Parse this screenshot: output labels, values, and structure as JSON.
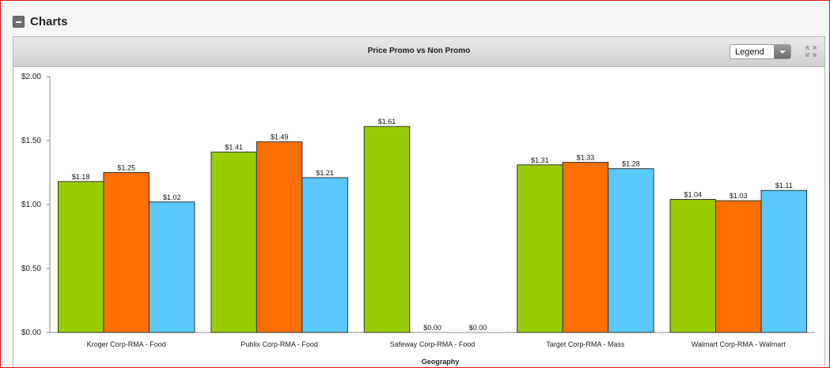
{
  "section": {
    "title": "Charts",
    "collapse_icon": "minus-square-icon"
  },
  "panel": {
    "title": "Price Promo vs Non Promo",
    "legend_select_value": "Legend",
    "dropdown_icon": "chevron-down-icon",
    "expand_icon": "expand-arrows-icon"
  },
  "colors": {
    "series1": "#99cc00",
    "series2": "#ff6e00",
    "series3": "#5ac8fa",
    "bar_border": "#333333",
    "axis": "#888888"
  },
  "chart_data": {
    "type": "bar",
    "title": "Price Promo vs Non Promo",
    "xlabel": "Geography",
    "ylabel": "",
    "ylim": [
      0,
      2
    ],
    "yticks": [
      "$0.00",
      "$0.50",
      "$1.00",
      "$1.50",
      "$2.00"
    ],
    "ytick_values": [
      0,
      0.5,
      1,
      1.5,
      2
    ],
    "categories": [
      "Kroger Corp-RMA - Food",
      "Publix Corp-RMA - Food",
      "Safeway Corp-RMA - Food",
      "Target Corp-RMA - Mass",
      "Walmart Corp-RMA - Walmart"
    ],
    "series": [
      {
        "values": [
          1.18,
          1.41,
          1.61,
          1.31,
          1.04
        ],
        "labels": [
          "$1.18",
          "$1.41",
          "$1.61",
          "$1.31",
          "$1.04"
        ],
        "color": "#99cc00"
      },
      {
        "values": [
          1.25,
          1.49,
          0,
          1.33,
          1.03
        ],
        "labels": [
          "$1.25",
          "$1.49",
          "$0.00",
          "$1.33",
          "$1.03"
        ],
        "color": "#ff6e00"
      },
      {
        "values": [
          1.02,
          1.21,
          0,
          1.28,
          1.11
        ],
        "labels": [
          "$1.02",
          "$1.21",
          "$0.00",
          "$1.28",
          "$1.11"
        ],
        "color": "#5ac8fa"
      }
    ],
    "grid": false,
    "legend": "hidden"
  }
}
